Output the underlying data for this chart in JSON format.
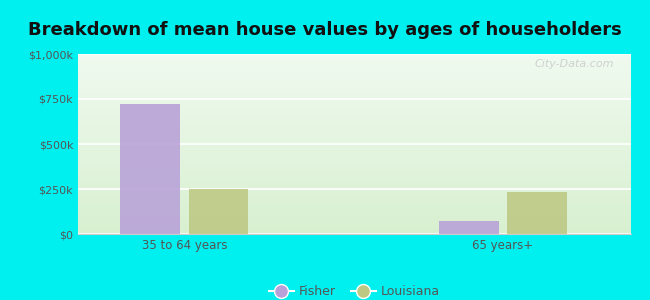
{
  "title": "Breakdown of mean house values by ages of householders",
  "categories": [
    "35 to 64 years",
    "65 years+"
  ],
  "series": [
    {
      "label": "Fisher",
      "values": [
        725000,
        75000
      ],
      "color": "#b8a0d8"
    },
    {
      "label": "Louisiana",
      "values": [
        252000,
        232000
      ],
      "color": "#bdc882"
    }
  ],
  "ylim": [
    0,
    1000000
  ],
  "yticks": [
    0,
    250000,
    500000,
    750000,
    1000000
  ],
  "ytick_labels": [
    "$0",
    "$250k",
    "$500k",
    "$750k",
    "$1,000k"
  ],
  "background_color": "#00f0f0",
  "plot_bg_gradient_top": "#f0faf0",
  "plot_bg_gradient_bottom": "#d8f0d0",
  "title_fontsize": 13,
  "bar_width": 0.28,
  "watermark": "City-Data.com"
}
